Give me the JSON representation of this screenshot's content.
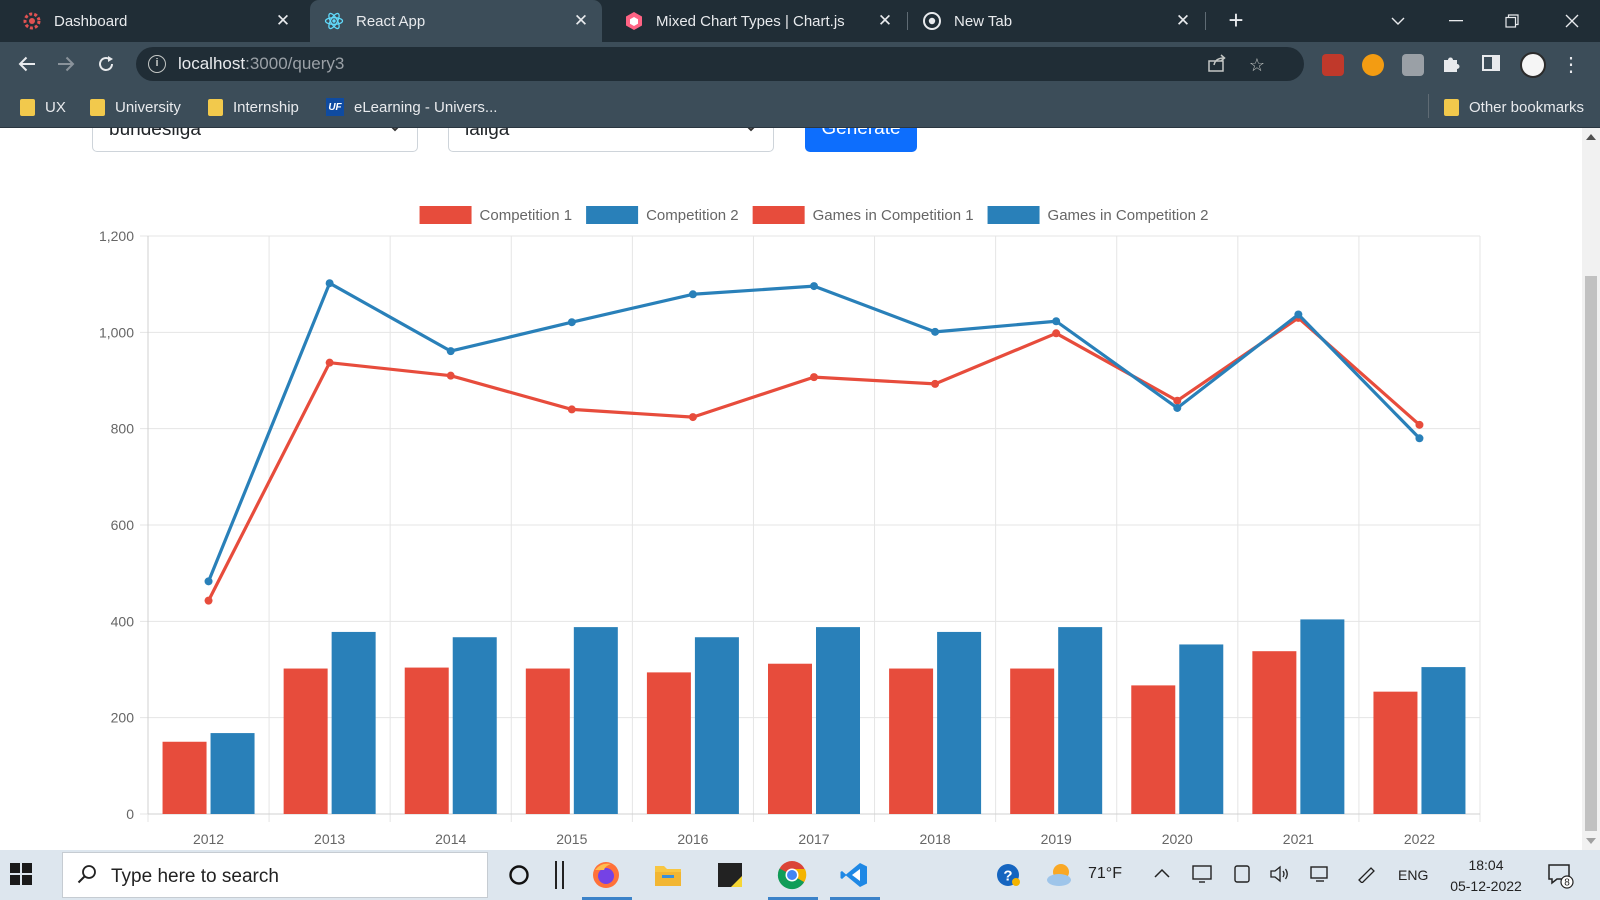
{
  "browser": {
    "tabs": [
      {
        "title": "Dashboard",
        "active": false
      },
      {
        "title": "React App",
        "active": true
      },
      {
        "title": "Mixed Chart Types | Chart.js",
        "active": false
      },
      {
        "title": "New Tab",
        "active": false
      }
    ],
    "url_host": "localhost",
    "url_path": ":3000/query3",
    "bookmarks": [
      "UX",
      "University",
      "Internship",
      "eLearning - Univers..."
    ],
    "uf_badge": "UF",
    "other_bookmarks": "Other bookmarks"
  },
  "form": {
    "select1_value": "bundesliga",
    "select2_value": "laliga",
    "generate_label": "Generate"
  },
  "chart_data": {
    "type": "bar",
    "categories": [
      "2012",
      "2013",
      "2014",
      "2015",
      "2016",
      "2017",
      "2018",
      "2019",
      "2020",
      "2021",
      "2022"
    ],
    "series": [
      {
        "name": "Competition 1",
        "type": "line",
        "color": "#e74c3c",
        "values": [
          443,
          937,
          910,
          840,
          824,
          907,
          893,
          998,
          858,
          1030,
          808
        ]
      },
      {
        "name": "Competition 2",
        "type": "line",
        "color": "#2980b9",
        "values": [
          483,
          1102,
          961,
          1021,
          1079,
          1096,
          1001,
          1023,
          843,
          1037,
          780
        ]
      },
      {
        "name": "Games in Competition 1",
        "type": "bar",
        "color": "#e74c3c",
        "values": [
          150,
          302,
          304,
          302,
          294,
          312,
          302,
          302,
          267,
          338,
          254
        ]
      },
      {
        "name": "Games in Competition 2",
        "type": "bar",
        "color": "#2980b9",
        "values": [
          168,
          378,
          367,
          388,
          367,
          388,
          378,
          388,
          352,
          404,
          305
        ]
      }
    ],
    "y_ticks": [
      "0",
      "200",
      "400",
      "600",
      "800",
      "1,000",
      "1,200"
    ],
    "ylim": [
      0,
      1200
    ],
    "grid": true,
    "legend_position": "top"
  },
  "taskbar": {
    "search_placeholder": "Type here to search",
    "temperature": "71°F",
    "language": "ENG",
    "time": "18:04",
    "date": "05-12-2022",
    "notification_count": "8"
  }
}
